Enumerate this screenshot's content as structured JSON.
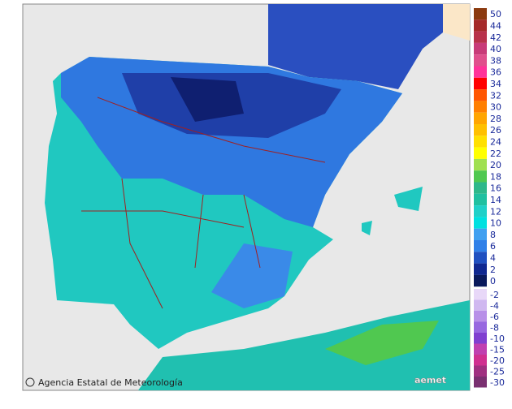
{
  "credit": "Agencia Estatal de Meteorología",
  "logo": "aemet",
  "legend": {
    "positive": [
      {
        "value": 50,
        "color": "#8b3a0f"
      },
      {
        "value": 44,
        "color": "#a52a2a"
      },
      {
        "value": 42,
        "color": "#b8324a"
      },
      {
        "value": 40,
        "color": "#c83c78"
      },
      {
        "value": 38,
        "color": "#e0508c"
      },
      {
        "value": 36,
        "color": "#ff3399"
      },
      {
        "value": 34,
        "color": "#ff0000"
      },
      {
        "value": 32,
        "color": "#ff5500"
      },
      {
        "value": 30,
        "color": "#ff7f00"
      },
      {
        "value": 28,
        "color": "#ffa500"
      },
      {
        "value": 26,
        "color": "#ffc000"
      },
      {
        "value": 24,
        "color": "#ffe000"
      },
      {
        "value": 22,
        "color": "#ffff00"
      },
      {
        "value": 20,
        "color": "#a0e050"
      },
      {
        "value": 18,
        "color": "#50c850"
      },
      {
        "value": 16,
        "color": "#2eb88a"
      },
      {
        "value": 14,
        "color": "#20c0a0"
      },
      {
        "value": 12,
        "color": "#20d0c8"
      },
      {
        "value": 10,
        "color": "#00e0e0"
      },
      {
        "value": 8,
        "color": "#40a0f0"
      },
      {
        "value": 6,
        "color": "#3080e8"
      },
      {
        "value": 4,
        "color": "#2050c0"
      },
      {
        "value": 2,
        "color": "#102890"
      },
      {
        "value": 0,
        "color": "#0a1a5c"
      }
    ],
    "negative": [
      {
        "value": -2,
        "color": "#e8d8f8"
      },
      {
        "value": -4,
        "color": "#d0b8f0"
      },
      {
        "value": -6,
        "color": "#b890e8"
      },
      {
        "value": -8,
        "color": "#9868e0"
      },
      {
        "value": -10,
        "color": "#8040d0"
      },
      {
        "value": -15,
        "color": "#c040b0"
      },
      {
        "value": -20,
        "color": "#d03090"
      },
      {
        "value": -25,
        "color": "#a03080"
      },
      {
        "value": -30,
        "color": "#7a3070"
      }
    ]
  }
}
